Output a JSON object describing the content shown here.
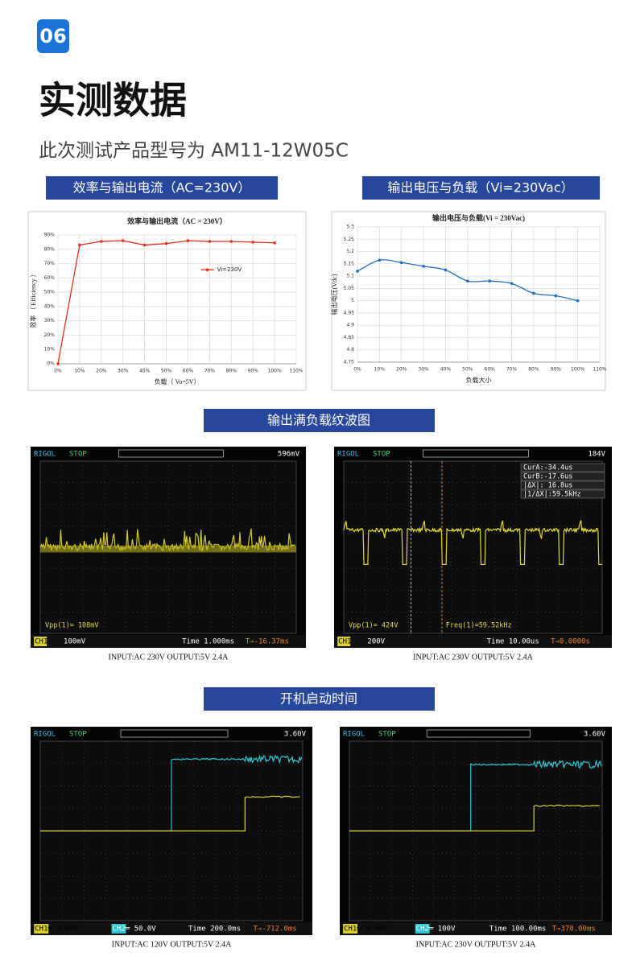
{
  "header": {
    "badge": "06",
    "title": "实测数据",
    "subtitle": "此次测试产品型号为 AM11-12W05C"
  },
  "banners": [
    "效率与输出电流（AC=230V）",
    "输出电压与负载（Vi=230Vac）",
    "输出满负载纹波图",
    "开机启动时间"
  ],
  "chart_data": [
    {
      "type": "line",
      "title": "效率与输出电流（AC = 230V）",
      "x_label": "负载（ Vo=5V）",
      "y_label": "效率 （ Efficiency ）",
      "x": [
        0,
        10,
        20,
        30,
        40,
        50,
        60,
        70,
        80,
        90,
        100
      ],
      "series": [
        {
          "name": "Vi=230V",
          "color": "#e0301a",
          "values": [
            0,
            83,
            85.5,
            86,
            83,
            84,
            86,
            85.5,
            85.5,
            85,
            84.5
          ]
        }
      ],
      "xlim": [
        0,
        110
      ],
      "xticks": [
        {
          "value": 0,
          "label": "0%"
        },
        {
          "value": 10,
          "label": "10%"
        },
        {
          "value": 20,
          "label": "20%"
        },
        {
          "value": 30,
          "label": "30%"
        },
        {
          "value": 40,
          "label": "40%"
        },
        {
          "value": 50,
          "label": "50%"
        },
        {
          "value": 60,
          "label": "60%"
        },
        {
          "value": 70,
          "label": "70%"
        },
        {
          "value": 80,
          "label": "80%"
        },
        {
          "value": 90,
          "label": "90%"
        },
        {
          "value": 100,
          "label": "100%"
        },
        {
          "value": 110,
          "label": "110%"
        }
      ],
      "ylim": [
        0,
        90
      ],
      "yticks": [
        {
          "value": 0,
          "label": "0%"
        },
        {
          "value": 10,
          "label": "10%"
        },
        {
          "value": 20,
          "label": "20%"
        },
        {
          "value": 30,
          "label": "30%"
        },
        {
          "value": 40,
          "label": "40%"
        },
        {
          "value": 50,
          "label": "50%"
        },
        {
          "value": 60,
          "label": "60%"
        },
        {
          "value": 70,
          "label": "70%"
        },
        {
          "value": 80,
          "label": "80%"
        },
        {
          "value": 90,
          "label": "90%"
        }
      ],
      "grid": true,
      "legend": "center",
      "smooth": false
    },
    {
      "type": "line",
      "title": "输出电压与负载(Vi = 230Vac)",
      "x_label": "负载大小",
      "y_label": "输出电压(Vdc)",
      "x": [
        0,
        10,
        20,
        30,
        40,
        50,
        60,
        70,
        80,
        90,
        100
      ],
      "series": [
        {
          "color": "#1f6fc0",
          "values": [
            5.12,
            5.165,
            5.155,
            5.14,
            5.125,
            5.08,
            5.08,
            5.07,
            5.03,
            5.02,
            5.0
          ]
        }
      ],
      "xlim": [
        0,
        110
      ],
      "xticks": [
        {
          "value": 0,
          "label": "0%"
        },
        {
          "value": 10,
          "label": "10%"
        },
        {
          "value": 20,
          "label": "20%"
        },
        {
          "value": 30,
          "label": "30%"
        },
        {
          "value": 40,
          "label": "40%"
        },
        {
          "value": 50,
          "label": "50%"
        },
        {
          "value": 60,
          "label": "60%"
        },
        {
          "value": 70,
          "label": "70%"
        },
        {
          "value": 80,
          "label": "80%"
        },
        {
          "value": 90,
          "label": "90%"
        },
        {
          "value": 100,
          "label": "100%"
        },
        {
          "value": 110,
          "label": "110%"
        }
      ],
      "ylim": [
        4.75,
        5.3
      ],
      "yticks": [
        4.75,
        4.8,
        4.85,
        4.9,
        4.95,
        5,
        5.05,
        5.1,
        5.15,
        5.2,
        5.25,
        5.3
      ],
      "grid": true,
      "smooth": true
    }
  ],
  "scopes": [
    {
      "brand": "RIGOL",
      "state": "STOP",
      "trigger_level": "596mV",
      "readouts": [],
      "measure": [
        "Vpp(1)= 108mV"
      ],
      "status": [
        "CH1",
        "100mV",
        "Time 1.000ms",
        "T→-16.37ms"
      ],
      "caption": "INPUT:AC 230V OUTPUT:5V 2.4A"
    },
    {
      "brand": "RIGOL",
      "state": "STOP",
      "trigger_level": "184V",
      "readouts": [
        "CurA:-34.4us",
        "CurB:-17.6us",
        "|ΔX|: 16.8us",
        "|1/ΔX|:59.5kHz"
      ],
      "measure": [
        "Vpp(1)= 424V",
        "Freq(1)=59.52kHz"
      ],
      "status": [
        "CH1",
        "200V",
        "Time 10.00us",
        "T→0.0000s"
      ],
      "caption": "INPUT:AC 230V OUTPUT:5V 2.4A"
    },
    {
      "brand": "RIGOL",
      "state": "STOP",
      "trigger_level": "3.60V",
      "readouts": [],
      "measure": [],
      "status": [
        "CH1═ 5.00V",
        "CH2═ 50.0V",
        "Time 200.0ms",
        "T→-712.0ms"
      ],
      "caption": "INPUT:AC 120V OUTPUT:5V 2.4A"
    },
    {
      "brand": "RIGOL",
      "state": "STOP",
      "trigger_level": "3.60V",
      "readouts": [],
      "measure": [],
      "status": [
        "CH1═ 5.00V",
        "CH2═ 100V",
        "Time 100.00ms",
        "T→370.00ms"
      ],
      "caption": "INPUT:AC 230V OUTPUT:5V 2.4A"
    }
  ]
}
